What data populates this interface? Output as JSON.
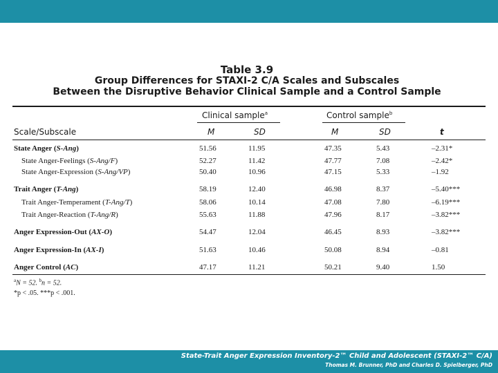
{
  "table": {
    "number": "Table 3.9",
    "title_line1": "Group Differences for STAXI-2 C/A Scales and Subscales",
    "title_line2": "Between the Disruptive Behavior Clinical Sample and a Control Sample",
    "group_headers": {
      "clinical": "Clinical sample",
      "clinical_sup": "a",
      "control": "Control sample",
      "control_sup": "b"
    },
    "column_headers": {
      "scale": "Scale/Subscale",
      "m1": "M",
      "sd1": "SD",
      "m2": "M",
      "sd2": "SD",
      "t": "t"
    },
    "rows": [
      {
        "name": "State Anger",
        "abbr": "S-Ang",
        "bold": true,
        "m1": "51.56",
        "sd1": "11.95",
        "m2": "47.35",
        "sd2": "5.43",
        "t": "–2.31*"
      },
      {
        "name": "State Anger-Feelings",
        "abbr": "S-Ang/F",
        "bold": false,
        "m1": "52.27",
        "sd1": "11.42",
        "m2": "47.77",
        "sd2": "7.08",
        "t": "–2.42*"
      },
      {
        "name": "State Anger-Expression",
        "abbr": "S-Ang/VP",
        "bold": false,
        "m1": "50.40",
        "sd1": "10.96",
        "m2": "47.15",
        "sd2": "5.33",
        "t": "–1.92"
      },
      {
        "name": "Trait Anger",
        "abbr": "T-Ang",
        "bold": true,
        "m1": "58.19",
        "sd1": "12.40",
        "m2": "46.98",
        "sd2": "8.37",
        "t": "–5.40***"
      },
      {
        "name": "Trait Anger-Temperament",
        "abbr": "T-Ang/T",
        "bold": false,
        "m1": "58.06",
        "sd1": "10.14",
        "m2": "47.08",
        "sd2": "7.80",
        "t": "–6.19***"
      },
      {
        "name": "Trait Anger-Reaction",
        "abbr": "T-Ang/R",
        "bold": false,
        "m1": "55.63",
        "sd1": "11.88",
        "m2": "47.96",
        "sd2": "8.17",
        "t": "–3.82***"
      },
      {
        "name": "Anger Expression-Out",
        "abbr": "AX-O",
        "bold": true,
        "m1": "54.47",
        "sd1": "12.04",
        "m2": "46.45",
        "sd2": "8.93",
        "t": "–3.82***"
      },
      {
        "name": "Anger Expression-In",
        "abbr": "AX-I",
        "bold": true,
        "m1": "51.63",
        "sd1": "10.46",
        "m2": "50.08",
        "sd2": "8.94",
        "t": "–0.81"
      },
      {
        "name": "Anger Control",
        "abbr": "AC",
        "bold": true,
        "m1": "47.17",
        "sd1": "11.21",
        "m2": "50.21",
        "sd2": "9.40",
        "t": "1.50"
      }
    ],
    "notes": {
      "line1_a": "a",
      "line1_text1": "N = 52. ",
      "line1_b": "b",
      "line1_text2": "n = 52.",
      "line2": "*p < .05. ***p < .001."
    }
  },
  "footer": {
    "title": "State-Trait Anger Expression Inventory-2™ Child and Adolescent (STAXI-2™ C/A)",
    "authors": "Thomas M. Brunner, PhD and Charles D. Spielberger, PhD"
  },
  "colors": {
    "accent": "#1d8fa6"
  }
}
